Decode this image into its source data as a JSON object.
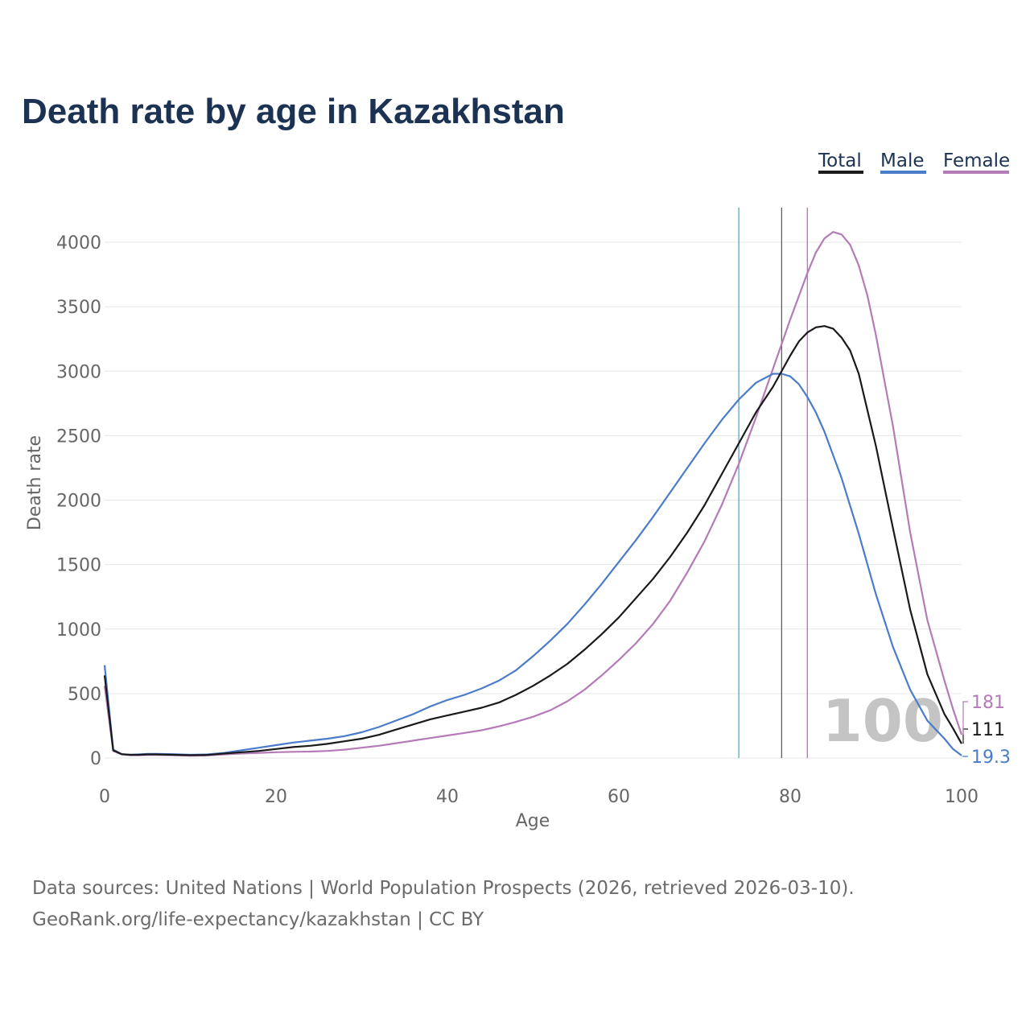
{
  "chart_data": {
    "type": "line",
    "title": "Death rate by age in Kazakhstan",
    "xlabel": "Age",
    "ylabel": "Death rate",
    "xlim": [
      0,
      100
    ],
    "ylim": [
      0,
      4300
    ],
    "xticks": [
      0,
      20,
      40,
      60,
      80,
      100
    ],
    "yticks": [
      0,
      500,
      1000,
      1500,
      2000,
      2500,
      3000,
      3500,
      4000
    ],
    "grid": true,
    "legend_position": "top-right",
    "watermark_year": "100",
    "series": [
      {
        "name": "Total",
        "color": "#1a1a1a",
        "end_label": "111",
        "x": [
          0,
          1,
          2,
          3,
          4,
          5,
          6,
          8,
          10,
          12,
          14,
          16,
          18,
          20,
          22,
          24,
          26,
          28,
          30,
          32,
          34,
          36,
          38,
          40,
          42,
          44,
          46,
          48,
          50,
          52,
          54,
          56,
          58,
          60,
          62,
          64,
          66,
          68,
          70,
          72,
          74,
          76,
          78,
          80,
          81,
          82,
          83,
          84,
          85,
          86,
          87,
          88,
          90,
          92,
          94,
          96,
          98,
          99,
          100
        ],
        "values": [
          640,
          60,
          30,
          25,
          25,
          28,
          28,
          25,
          22,
          24,
          35,
          45,
          55,
          70,
          85,
          95,
          110,
          130,
          150,
          180,
          220,
          260,
          300,
          330,
          360,
          390,
          430,
          490,
          560,
          640,
          730,
          840,
          960,
          1090,
          1240,
          1390,
          1560,
          1750,
          1960,
          2200,
          2440,
          2680,
          2880,
          3120,
          3230,
          3300,
          3340,
          3350,
          3330,
          3260,
          3160,
          2980,
          2420,
          1780,
          1150,
          650,
          340,
          230,
          111
        ]
      },
      {
        "name": "Male",
        "color": "#4a7cc9",
        "end_label": "19.3",
        "x": [
          0,
          1,
          2,
          3,
          4,
          5,
          6,
          8,
          10,
          12,
          14,
          16,
          18,
          20,
          22,
          24,
          26,
          28,
          30,
          32,
          34,
          36,
          38,
          40,
          42,
          44,
          46,
          48,
          50,
          52,
          54,
          56,
          58,
          60,
          62,
          64,
          66,
          68,
          70,
          72,
          74,
          76,
          78,
          79,
          80,
          81,
          82,
          83,
          84,
          86,
          88,
          90,
          92,
          94,
          96,
          98,
          99,
          100
        ],
        "values": [
          720,
          65,
          30,
          25,
          28,
          32,
          32,
          30,
          25,
          28,
          40,
          60,
          80,
          100,
          120,
          135,
          150,
          170,
          200,
          240,
          290,
          340,
          400,
          450,
          490,
          540,
          600,
          680,
          790,
          910,
          1040,
          1190,
          1350,
          1520,
          1690,
          1870,
          2060,
          2250,
          2440,
          2620,
          2780,
          2910,
          2980,
          2980,
          2960,
          2900,
          2800,
          2680,
          2530,
          2170,
          1740,
          1270,
          860,
          530,
          290,
          150,
          70,
          19.3
        ]
      },
      {
        "name": "Female",
        "color": "#b57bb8",
        "end_label": "181",
        "x": [
          0,
          1,
          2,
          3,
          4,
          5,
          6,
          8,
          10,
          12,
          14,
          16,
          18,
          20,
          22,
          24,
          26,
          28,
          30,
          32,
          34,
          36,
          38,
          40,
          42,
          44,
          46,
          48,
          50,
          52,
          54,
          56,
          58,
          60,
          62,
          64,
          66,
          68,
          70,
          72,
          74,
          76,
          78,
          80,
          82,
          83,
          84,
          85,
          86,
          87,
          88,
          89,
          90,
          92,
          94,
          96,
          98,
          99,
          100
        ],
        "values": [
          560,
          55,
          28,
          22,
          22,
          24,
          24,
          22,
          18,
          20,
          28,
          35,
          40,
          45,
          48,
          50,
          55,
          65,
          80,
          95,
          115,
          135,
          155,
          175,
          195,
          215,
          245,
          280,
          320,
          370,
          440,
          530,
          640,
          760,
          890,
          1040,
          1220,
          1440,
          1680,
          1960,
          2280,
          2640,
          3020,
          3400,
          3760,
          3920,
          4030,
          4080,
          4060,
          3980,
          3820,
          3590,
          3280,
          2570,
          1750,
          1070,
          600,
          380,
          181
        ]
      }
    ],
    "reference_lines": [
      {
        "name": "Male",
        "age": 74,
        "color": "#5b9ab8"
      },
      {
        "name": "Total",
        "age": 79,
        "color": "#555555"
      },
      {
        "name": "Female",
        "age": 82,
        "color": "#b860c4"
      }
    ]
  },
  "footer": {
    "line1": "Data sources: United Nations | World Population Prospects (2026, retrieved 2026-03-10).",
    "line2": "GeoRank.org/life-expectancy/kazakhstan | CC BY"
  }
}
